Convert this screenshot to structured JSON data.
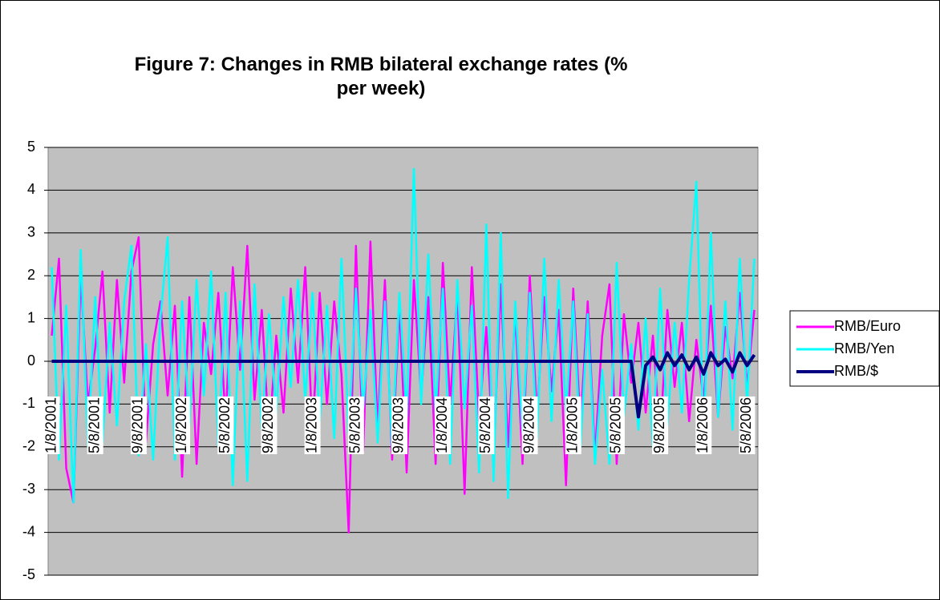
{
  "chart_data": {
    "type": "line",
    "title": "Figure 7: Changes in RMB bilateral exchange rates (% per week)",
    "categories": [
      "1/8/2001",
      null,
      null,
      null,
      null,
      null,
      "5/8/2001",
      null,
      null,
      null,
      null,
      null,
      "9/8/2001",
      null,
      null,
      null,
      null,
      null,
      "1/8/2002",
      null,
      null,
      null,
      null,
      null,
      "5/8/2002",
      null,
      null,
      null,
      null,
      null,
      "9/8/2002",
      null,
      null,
      null,
      null,
      null,
      "1/8/2003",
      null,
      null,
      null,
      null,
      null,
      "5/8/2003",
      null,
      null,
      null,
      null,
      null,
      "9/8/2003",
      null,
      null,
      null,
      null,
      null,
      "1/8/2004",
      null,
      null,
      null,
      null,
      null,
      "5/8/2004",
      null,
      null,
      null,
      null,
      null,
      "9/8/2004",
      null,
      null,
      null,
      null,
      null,
      "1/8/2005",
      null,
      null,
      null,
      null,
      null,
      "5/8/2005",
      null,
      null,
      null,
      null,
      null,
      "9/8/2005",
      null,
      null,
      null,
      null,
      null,
      "1/8/2006",
      null,
      null,
      null,
      null,
      null,
      "5/8/2006",
      null
    ],
    "series": [
      {
        "name": "RMB/Euro",
        "color": "#ff00ff",
        "values": [
          0.6,
          2.4,
          -2.5,
          -3.3,
          2.0,
          -1.0,
          0.3,
          2.1,
          -1.2,
          1.9,
          -0.5,
          2.1,
          2.9,
          -1.9,
          0.4,
          1.4,
          -0.8,
          1.3,
          -2.7,
          1.5,
          -2.4,
          0.9,
          -0.3,
          1.6,
          -1.4,
          2.2,
          -0.2,
          2.7,
          -0.9,
          1.2,
          -1.8,
          0.6,
          -1.2,
          1.7,
          -0.5,
          2.2,
          -1.7,
          1.6,
          -1.0,
          1.4,
          -0.3,
          -4.0,
          2.7,
          -2.1,
          2.8,
          -1.6,
          1.9,
          -2.3,
          1.3,
          -2.6,
          1.9,
          -0.8,
          1.5,
          -2.4,
          2.3,
          -1.0,
          1.6,
          -3.1,
          2.2,
          -1.4,
          0.8,
          -2.2,
          1.8,
          -2.0,
          1.1,
          -2.4,
          2.0,
          -1.3,
          1.5,
          -0.7,
          1.2,
          -2.9,
          1.7,
          -1.5,
          1.4,
          -2.2,
          0.6,
          1.8,
          -2.4,
          1.1,
          -0.5,
          0.9,
          -1.2,
          0.6,
          -1.8,
          1.2,
          -0.6,
          0.9,
          -1.4,
          0.5,
          -0.9,
          1.3,
          -1.3,
          0.8,
          -0.4,
          1.6,
          -0.6,
          1.2
        ]
      },
      {
        "name": "RMB/Yen",
        "color": "#00ffff",
        "values": [
          2.2,
          -2.3,
          1.3,
          -3.3,
          2.6,
          -2.0,
          1.5,
          -1.9,
          0.9,
          -1.5,
          1.4,
          2.7,
          -2.2,
          0.4,
          -2.3,
          1.0,
          2.9,
          -2.3,
          1.4,
          -1.5,
          1.9,
          -0.8,
          2.1,
          -2.0,
          1.6,
          -2.9,
          1.4,
          -2.8,
          1.8,
          -1.6,
          1.1,
          -1.2,
          1.5,
          -0.6,
          1.9,
          -0.9,
          1.6,
          -1.4,
          1.3,
          -1.8,
          2.4,
          -1.7,
          1.7,
          -1.1,
          1.2,
          -1.9,
          1.4,
          -2.0,
          1.6,
          -1.3,
          4.5,
          -1.0,
          2.5,
          -1.2,
          1.7,
          -2.4,
          1.9,
          -1.1,
          1.3,
          -2.6,
          3.2,
          -2.8,
          3.0,
          -3.2,
          1.4,
          -1.7,
          1.6,
          -1.8,
          2.4,
          -1.4,
          1.9,
          -1.2,
          1.4,
          -2.0,
          1.1,
          -2.4,
          -0.2,
          -2.4,
          2.3,
          -1.3,
          0.4,
          -1.6,
          1.0,
          -2.0,
          1.7,
          -1.5,
          0.9,
          -1.2,
          1.9,
          4.2,
          -1.8,
          3.0,
          -1.3,
          1.4,
          -1.6,
          2.4,
          -1.0,
          2.4
        ]
      },
      {
        "name": "RMB/$",
        "color": "#000080",
        "values": [
          0,
          0,
          0,
          0,
          0,
          0,
          0,
          0,
          0,
          0,
          0,
          0,
          0,
          0,
          0,
          0,
          0,
          0,
          0,
          0,
          0,
          0,
          0,
          0,
          0,
          0,
          0,
          0,
          0,
          0,
          0,
          0,
          0,
          0,
          0,
          0,
          0,
          0,
          0,
          0,
          0,
          0,
          0,
          0,
          0,
          0,
          0,
          0,
          0,
          0,
          0,
          0,
          0,
          0,
          0,
          0,
          0,
          0,
          0,
          0,
          0,
          0,
          0,
          0,
          0,
          0,
          0,
          0,
          0,
          0,
          0,
          0,
          0,
          0,
          0,
          0,
          0,
          0,
          0,
          0,
          0,
          -1.3,
          -0.1,
          0.1,
          -0.2,
          0.2,
          -0.1,
          0.15,
          -0.2,
          0.1,
          -0.3,
          0.2,
          -0.1,
          0.05,
          -0.25,
          0.2,
          -0.1,
          0.15
        ]
      }
    ],
    "ylim": [
      -5,
      5
    ],
    "yticks": [
      -5,
      -4,
      -3,
      -2,
      -1,
      0,
      1,
      2,
      3,
      4,
      5
    ],
    "grid": true,
    "legend": "right"
  }
}
